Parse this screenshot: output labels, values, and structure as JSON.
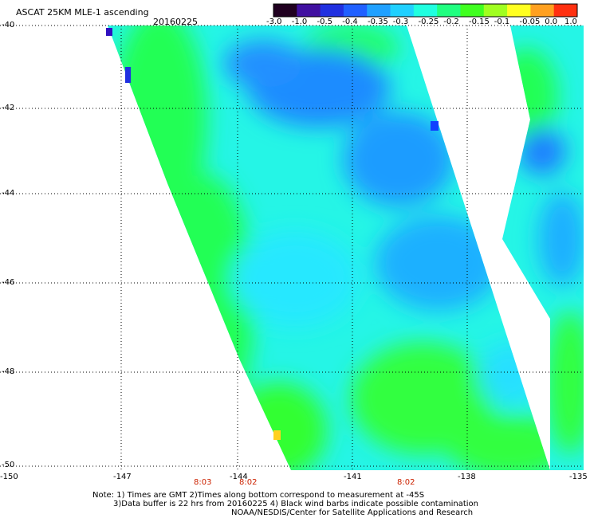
{
  "header": {
    "title": "ASCAT 25KM MLE-1 ascending",
    "date": "20160225"
  },
  "colorbar": {
    "labels": [
      "-3.0",
      "-1.0",
      "-0.5",
      "-0.4",
      "-0.35",
      "-0.3",
      "-0.25",
      "-0.2",
      "-0.15",
      "-0.1",
      "-0.05",
      "0.0",
      "1.0"
    ],
    "colors": [
      "#200020",
      "#4010a0",
      "#2030e0",
      "#2060ff",
      "#20a0ff",
      "#20d0ff",
      "#20ffe0",
      "#20ff80",
      "#40ff20",
      "#a0ff20",
      "#ffff20",
      "#ffa020",
      "#ff3010"
    ]
  },
  "axes": {
    "lat_labels": [
      "-40",
      "-42",
      "-44",
      "-46",
      "-48",
      "-50"
    ],
    "lon_labels": [
      "-150",
      "-147",
      "-144",
      "-141",
      "-138",
      "-135"
    ]
  },
  "time_labels": [
    "8:03",
    "8:02",
    "8:02"
  ],
  "notes": {
    "line1": "Note: 1) Times are GMT 2)Times along bottom correspond to measurement at -45S",
    "line2": "3)Data buffer is 22 hrs from 20160225 4) Black wind barbs indicate possible contamination",
    "line3": "NOAA/NESDIS/Center for Satellite Applications and Research"
  },
  "map_style": {
    "gridline_color": "#000000",
    "palette_low": "#1a4dff",
    "palette_mid": "#22f0f0",
    "palette_high": "#20ff30"
  }
}
